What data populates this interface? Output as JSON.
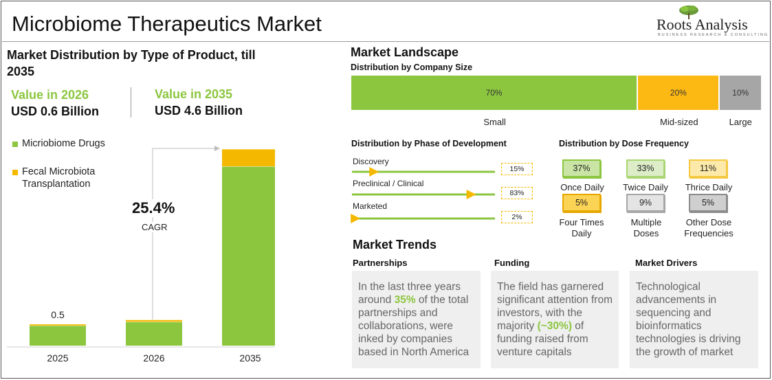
{
  "header": {
    "title": "Microbiome Therapeutics Market"
  },
  "logo": {
    "name": "Roots Analysis",
    "tagline": "BUSINESS RESEARCH & CONSULTING"
  },
  "left": {
    "title": "Market Distribution by Type of Product, till 2035",
    "kpi_2026_label": "Value in 2026",
    "kpi_2026_value": "USD 0.6 Billion",
    "kpi_2035_label": "Value in 2035",
    "kpi_2035_value": "USD 4.6 Billion",
    "cagr_value": "25.4%",
    "cagr_label": "CAGR"
  },
  "chart_data": {
    "type": "bar",
    "stacked": true,
    "categories": [
      "2025",
      "2026",
      "2035"
    ],
    "series": [
      {
        "name": "Micriobiome Drugs",
        "color": "#8cc63f",
        "values": [
          0.47,
          0.56,
          4.2
        ]
      },
      {
        "name": "Fecal Microbiota Transplantation",
        "color": "#f5b800",
        "values": [
          0.03,
          0.04,
          0.4
        ]
      }
    ],
    "data_labels": [
      {
        "category": "2025",
        "text": "0.5"
      }
    ],
    "ylim": [
      0,
      4.75
    ],
    "legend_position": "top-left"
  },
  "landscape": {
    "title": "Market Landscape",
    "company_size": {
      "title": "Distribution by Company Size",
      "segments": [
        {
          "label": "Small",
          "value": 70,
          "text": "70%",
          "color": "#8cc63f"
        },
        {
          "label": "Mid-sized",
          "value": 20,
          "text": "20%",
          "color": "#fdb913"
        },
        {
          "label": "Large",
          "value": 10,
          "text": "10%",
          "color": "#a6a6a6"
        }
      ]
    },
    "phase": {
      "title": "Distribution by Phase of Development",
      "items": [
        {
          "label": "Discovery",
          "value": 15,
          "text": "15%"
        },
        {
          "label": "Preclinical / Clinical",
          "value": 83,
          "text": "83%"
        },
        {
          "label": "Marketed",
          "value": 2,
          "text": "2%"
        }
      ]
    },
    "dose": {
      "title": "Distribution by Dose Frequency",
      "items": [
        {
          "label": "Once Daily",
          "text": "37%",
          "fill": "#c9e4a4",
          "border": "#8cc63f"
        },
        {
          "label": "Twice Daily",
          "text": "33%",
          "fill": "#dcedc8",
          "border": "#a9d672"
        },
        {
          "label": "Thrice Daily",
          "text": "11%",
          "fill": "#fde9a9",
          "border": "#f5c842"
        },
        {
          "label": "Four Times Daily",
          "text": "5%",
          "fill": "#fcd455",
          "border": "#e6a800"
        },
        {
          "label": "Multiple Doses",
          "text": "9%",
          "fill": "#e4e4e4",
          "border": "#a6a6a6"
        },
        {
          "label": "Other Dose Frequencies",
          "text": "5%",
          "fill": "#cfcfcf",
          "border": "#8c8c8c"
        }
      ]
    }
  },
  "trends": {
    "title": "Market Trends",
    "partnerships": {
      "title": "Partnerships",
      "pre": "In the last three years around ",
      "highlight": "35%",
      "post": " of the total partnerships and collaborations, were inked by companies based in North America"
    },
    "funding": {
      "title": "Funding",
      "pre": "The field has garnered significant attention from investors, with the majority ",
      "highlight": "(~30%)",
      "post": " of funding raised from venture capitals"
    },
    "drivers": {
      "title": "Market Drivers",
      "text": "Technological advancements in sequencing and bioinformatics technologies is driving the growth of market"
    }
  }
}
